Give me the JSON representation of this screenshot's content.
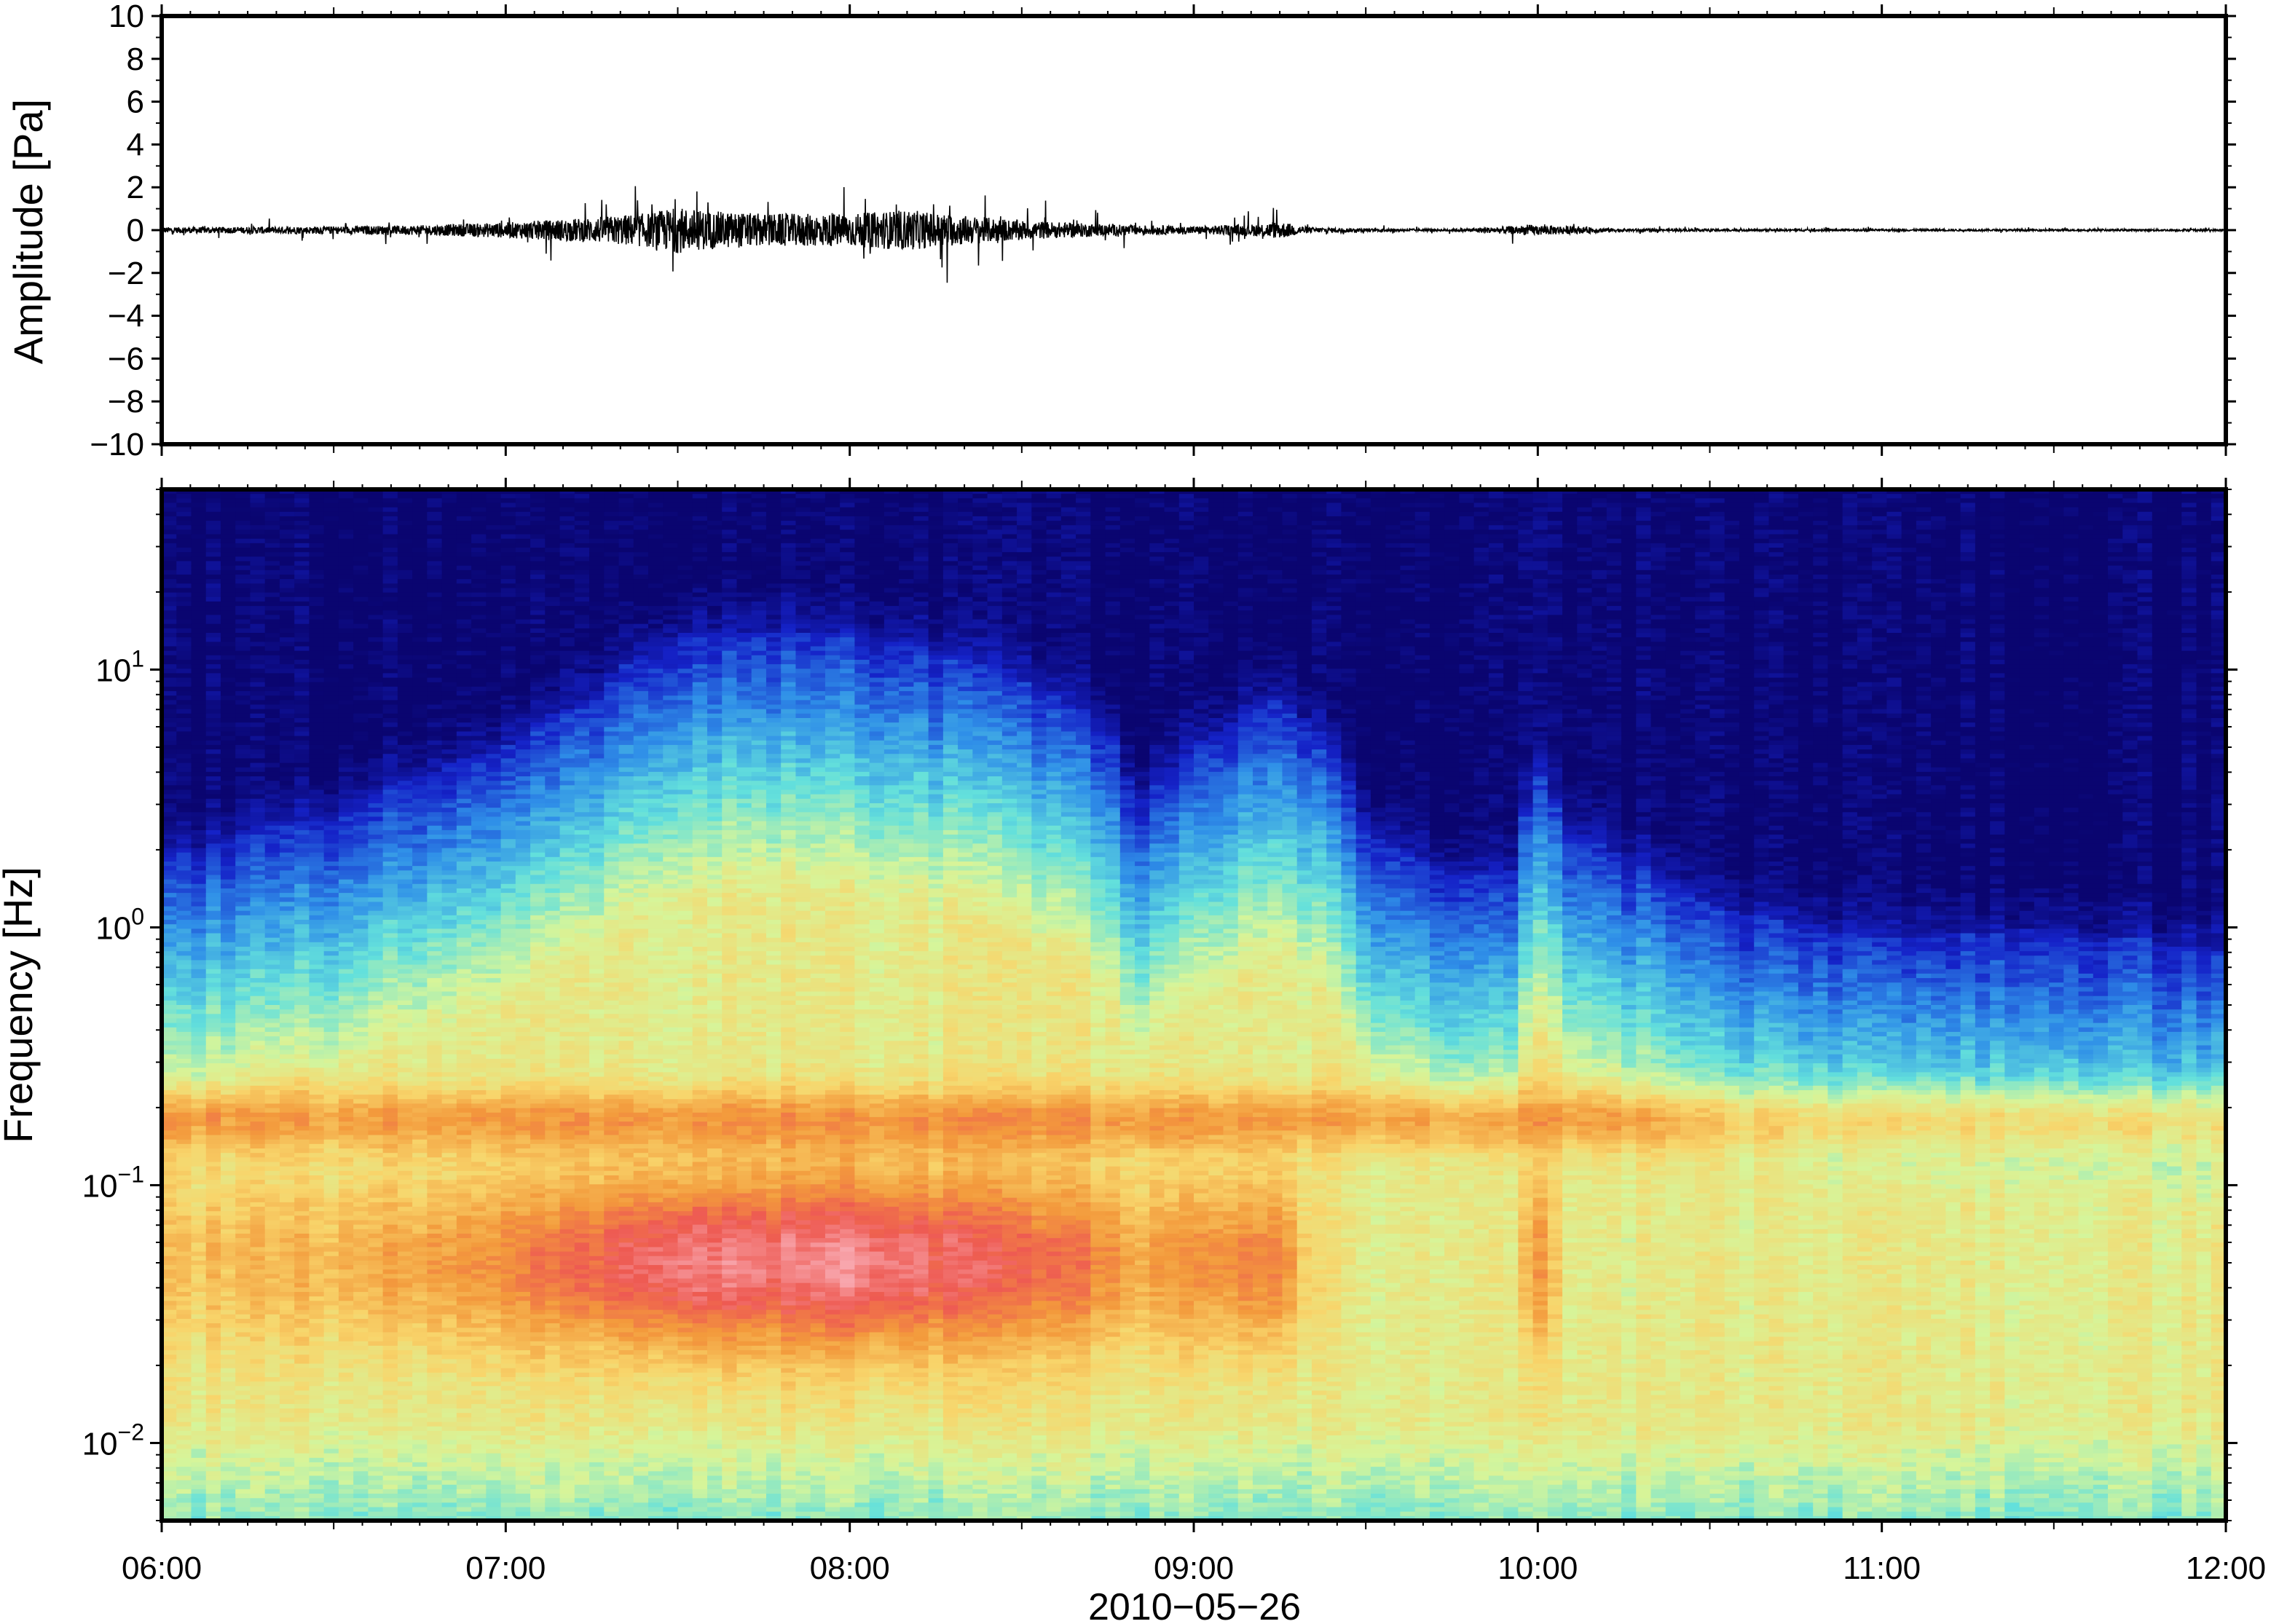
{
  "chart_data": [
    {
      "type": "line",
      "title": "",
      "ylabel": "Amplitude [Pa]",
      "xlabel": "",
      "ylim": [
        -10,
        10
      ],
      "xlim": [
        "06:00",
        "12:00"
      ],
      "yticks": [
        10,
        8,
        6,
        4,
        2,
        0,
        -2,
        -4,
        -6,
        -8,
        -10
      ],
      "ytick_labels": [
        "10",
        "8",
        "6",
        "4",
        "2",
        "0",
        "−2",
        "−4",
        "−6",
        "−8",
        "−10"
      ],
      "grid": false,
      "series": [
        {
          "x": [
            "06:00",
            "06:15",
            "06:30",
            "06:45",
            "07:00",
            "07:15",
            "07:25",
            "07:30",
            "07:35",
            "07:45",
            "08:00",
            "08:10",
            "08:15",
            "08:30",
            "08:45",
            "09:00",
            "09:10",
            "09:15",
            "09:20",
            "09:30",
            "09:45",
            "10:00",
            "10:15",
            "10:30",
            "11:00",
            "11:30",
            "12:00"
          ],
          "envelope": [
            0.3,
            0.35,
            0.4,
            0.5,
            0.8,
            1.3,
            1.8,
            2.4,
            2.0,
            1.7,
            1.7,
            2.1,
            1.8,
            1.0,
            0.6,
            0.4,
            0.6,
            0.9,
            0.3,
            0.15,
            0.12,
            0.55,
            0.15,
            0.12,
            0.1,
            0.1,
            0.1
          ]
        }
      ]
    },
    {
      "type": "heatmap",
      "title": "",
      "ylabel": "Frequency [Hz]",
      "xlabel": "2010−05−26",
      "yscale": "log",
      "ylim": [
        0.005,
        50
      ],
      "xlim": [
        "06:00",
        "12:00"
      ],
      "yticks": [
        10,
        1,
        0.1,
        0.01
      ],
      "ytick_base": [
        "10",
        "10",
        "10",
        "10"
      ],
      "ytick_exp": [
        "1",
        "0",
        "−1",
        "−2"
      ],
      "xticks": [
        "06:00",
        "07:00",
        "08:00",
        "09:00",
        "10:00",
        "11:00",
        "12:00"
      ],
      "colormap": [
        "#0a0570",
        "#1522c8",
        "#2f8fe8",
        "#63e0dc",
        "#d6f59a",
        "#f8d56b",
        "#f39a3c",
        "#ee5a52",
        "#f8a6ad"
      ],
      "time_hours": [
        6.0,
        6.5,
        7.0,
        7.25,
        7.5,
        7.75,
        8.0,
        8.25,
        8.5,
        8.75,
        8.83,
        9.0,
        9.25,
        9.35,
        9.5,
        9.75,
        9.92,
        10.0,
        10.1,
        10.5,
        11.0,
        11.5,
        12.0
      ],
      "upper_band_edge_hz": [
        1.8,
        2.8,
        5.0,
        8.0,
        14.0,
        14.0,
        14.0,
        12.0,
        9.0,
        6.0,
        3.0,
        5.0,
        8.0,
        6.0,
        2.5,
        1.6,
        1.6,
        4.0,
        2.3,
        1.2,
        0.9,
        1.0,
        0.8
      ],
      "peak_intensity": [
        0.62,
        0.66,
        0.75,
        0.84,
        0.95,
        0.92,
        0.96,
        0.9,
        0.82,
        0.76,
        0.68,
        0.73,
        0.78,
        0.56,
        0.5,
        0.5,
        0.5,
        0.72,
        0.48,
        0.5,
        0.5,
        0.5,
        0.5
      ]
    }
  ]
}
